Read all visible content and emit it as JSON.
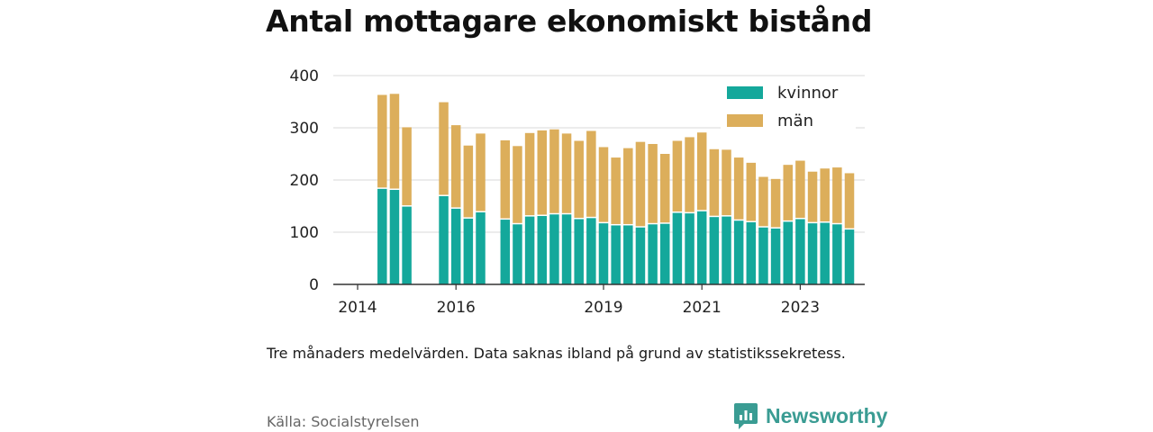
{
  "title": "Antal mottagare ekonomiskt bistånd",
  "caption": "Tre månaders medelvärden. Data saknas ibland på grund av statistikssekretess.",
  "source": "Källa: Socialstyrelsen",
  "brand": {
    "name": "Newsworthy",
    "color": "#3a9c93",
    "icon": "newsworthy-bar-chart-logo"
  },
  "colors": {
    "kvinnor": "#14a89b",
    "man": "#dcae5b",
    "grid": "#d9d9d9",
    "axis": "#333333"
  },
  "chart_data": {
    "type": "bar",
    "stacked": true,
    "ylim": [
      0,
      400
    ],
    "yticks": [
      "0",
      "100",
      "200",
      "300",
      "400"
    ],
    "xticks": [
      {
        "label": "2014",
        "slot": 0
      },
      {
        "label": "2016",
        "slot": 8
      },
      {
        "label": "2019",
        "slot": 20
      },
      {
        "label": "2021",
        "slot": 28
      },
      {
        "label": "2023",
        "slot": 36
      }
    ],
    "grid": true,
    "legend": "top-right",
    "series": [
      {
        "name": "kvinnor",
        "color": "#14a89b",
        "values": [
          null,
          null,
          183,
          181,
          149,
          null,
          null,
          169,
          145,
          126,
          138,
          null,
          124,
          115,
          130,
          131,
          134,
          134,
          125,
          127,
          117,
          113,
          113,
          109,
          115,
          116,
          137,
          136,
          140,
          129,
          130,
          122,
          119,
          109,
          107,
          120,
          125,
          117,
          118,
          115,
          105
        ]
      },
      {
        "name": "män",
        "color": "#dcae5b",
        "values": [
          null,
          null,
          180,
          184,
          152,
          null,
          null,
          180,
          160,
          140,
          151,
          null,
          152,
          150,
          160,
          164,
          163,
          155,
          150,
          167,
          146,
          130,
          148,
          164,
          154,
          134,
          138,
          146,
          151,
          130,
          128,
          121,
          114,
          97,
          95,
          109,
          112,
          99,
          104,
          109,
          108
        ]
      }
    ]
  }
}
